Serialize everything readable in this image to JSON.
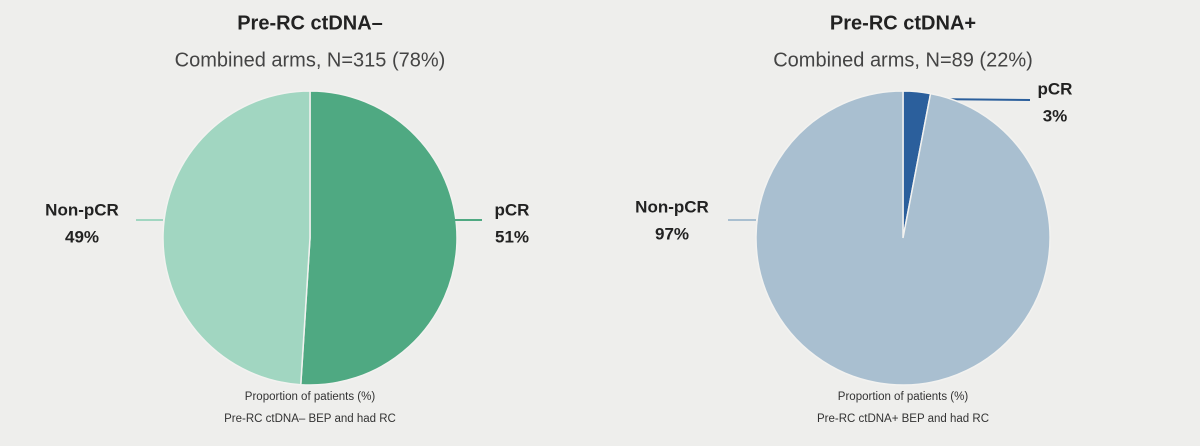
{
  "chart_data": [
    {
      "type": "pie",
      "title": "Pre-RC ctDNA–",
      "subtitle": "Combined arms, N=315 (78%)",
      "categories": [
        "pCR",
        "Non-pCR"
      ],
      "values": [
        51,
        49
      ],
      "value_labels": [
        "51%",
        "49%"
      ],
      "colors": [
        "#4fa982",
        "#a1d6c1"
      ],
      "footnotes": [
        "Proportion of patients (%)",
        "Pre-RC ctDNA– BEP and had RC"
      ]
    },
    {
      "type": "pie",
      "title": "Pre-RC ctDNA+",
      "subtitle": "Combined arms, N=89 (22%)",
      "categories": [
        "pCR",
        "Non-pCR"
      ],
      "values": [
        3,
        97
      ],
      "value_labels": [
        "3%",
        "97%"
      ],
      "colors": [
        "#2b5f9c",
        "#a9bfd0"
      ],
      "footnotes": [
        "Proportion of patients (%)",
        "Pre-RC ctDNA+ BEP and had RC"
      ]
    }
  ]
}
